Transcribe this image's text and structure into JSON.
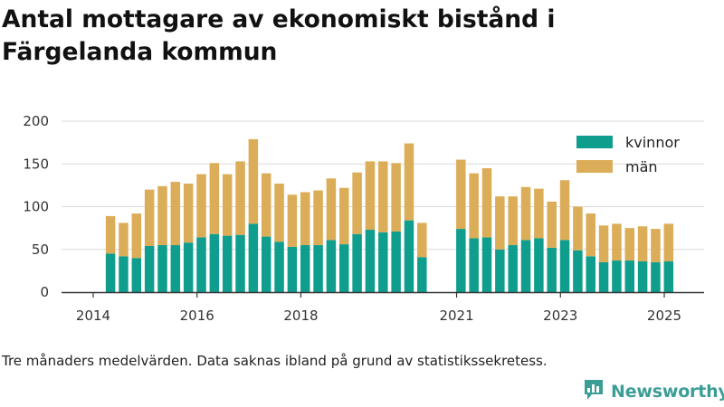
{
  "title": "Antal mottagare av ekonomiskt bistånd i Färgelanda kommun",
  "caption": "Tre månaders medelvärden. Data saknas ibland på grund av statistikssekretess.",
  "brand": {
    "name": "Newsworthy",
    "color": "#3b9e96",
    "logo_icon": "bar-chart-bubble-icon"
  },
  "colors": {
    "kvinnor": "#0f9e8e",
    "man": "#dcad58",
    "grid": "#d9d9d9",
    "axis": "#333333"
  },
  "chart_data": {
    "type": "bar",
    "stacked": true,
    "title": "Antal mottagare av ekonomiskt bistånd i Färgelanda kommun",
    "xlabel": "",
    "ylabel": "",
    "ylim": [
      0,
      200
    ],
    "yticks": [
      0,
      50,
      100,
      150,
      200
    ],
    "xticks": [
      "2014",
      "2016",
      "2018",
      "2021",
      "2023",
      "2025"
    ],
    "grid": true,
    "legend_position": "top-right",
    "x": [
      "2014-05",
      "2014-08",
      "2014-11",
      "2015-02",
      "2015-05",
      "2015-08",
      "2015-11",
      "2016-02",
      "2016-05",
      "2016-08",
      "2016-11",
      "2017-02",
      "2017-05",
      "2017-08",
      "2017-11",
      "2018-02",
      "2018-05",
      "2018-08",
      "2018-11",
      "2019-02",
      "2019-05",
      "2019-08",
      "2019-11",
      "2020-02",
      "2020-05",
      "2020-08",
      "2021-02",
      "2021-05",
      "2021-08",
      "2021-11",
      "2022-02",
      "2022-05",
      "2022-08",
      "2022-11",
      "2023-02",
      "2023-05",
      "2023-08",
      "2023-11",
      "2024-02",
      "2024-05",
      "2024-08",
      "2024-11",
      "2025-02"
    ],
    "series": [
      {
        "name": "kvinnor",
        "values": [
          45,
          42,
          40,
          54,
          55,
          55,
          58,
          64,
          68,
          66,
          67,
          80,
          65,
          59,
          53,
          55,
          55,
          61,
          56,
          68,
          73,
          70,
          71,
          84,
          41,
          null,
          74,
          63,
          64,
          50,
          55,
          61,
          63,
          52,
          61,
          49,
          42,
          35,
          37,
          37,
          36,
          35,
          36
        ]
      },
      {
        "name": "män",
        "values": [
          44,
          39,
          52,
          66,
          69,
          74,
          69,
          74,
          83,
          72,
          86,
          99,
          74,
          68,
          61,
          62,
          64,
          72,
          66,
          72,
          80,
          83,
          80,
          90,
          40,
          null,
          81,
          76,
          81,
          62,
          57,
          62,
          58,
          54,
          70,
          51,
          50,
          43,
          43,
          38,
          41,
          39,
          44
        ]
      }
    ]
  }
}
